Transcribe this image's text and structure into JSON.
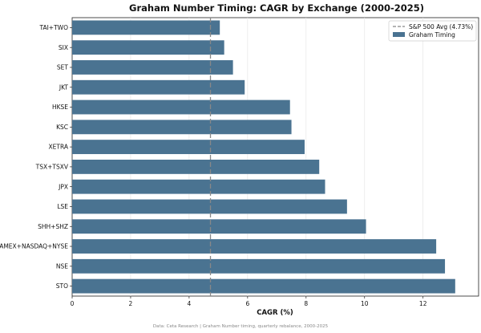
{
  "chart_data": {
    "type": "bar",
    "orientation": "horizontal",
    "title": "Graham Number Timing: CAGR by Exchange (2000-2025)",
    "xlabel": "CAGR (%)",
    "ylabel": "",
    "xlim": [
      0,
      13.9
    ],
    "xticks": [
      0,
      2,
      4,
      6,
      8,
      10,
      12
    ],
    "grid": "x",
    "legend_position": "top-right",
    "series": [
      {
        "name": "Graham Timing",
        "color": "#4a7391",
        "categories": [
          "STO",
          "NSE",
          "AMEX+NASDAQ+NYSE",
          "SHH+SHZ",
          "LSE",
          "JPX",
          "TSX+TSXV",
          "XETRA",
          "KSC",
          "HKSE",
          "JKT",
          "SET",
          "SIX",
          "TAI+TWO"
        ],
        "values": [
          13.1,
          12.75,
          12.45,
          10.05,
          9.4,
          8.65,
          8.45,
          7.95,
          7.5,
          7.45,
          5.9,
          5.5,
          5.2,
          5.05
        ]
      }
    ],
    "reference_line": {
      "label": "S&P 500 Avg (4.73%)",
      "value": 4.73,
      "color": "#888888",
      "style": "dashed"
    },
    "footnote": "Data: Ceta Research | Graham Number timing, quarterly rebalance, 2000-2025"
  }
}
